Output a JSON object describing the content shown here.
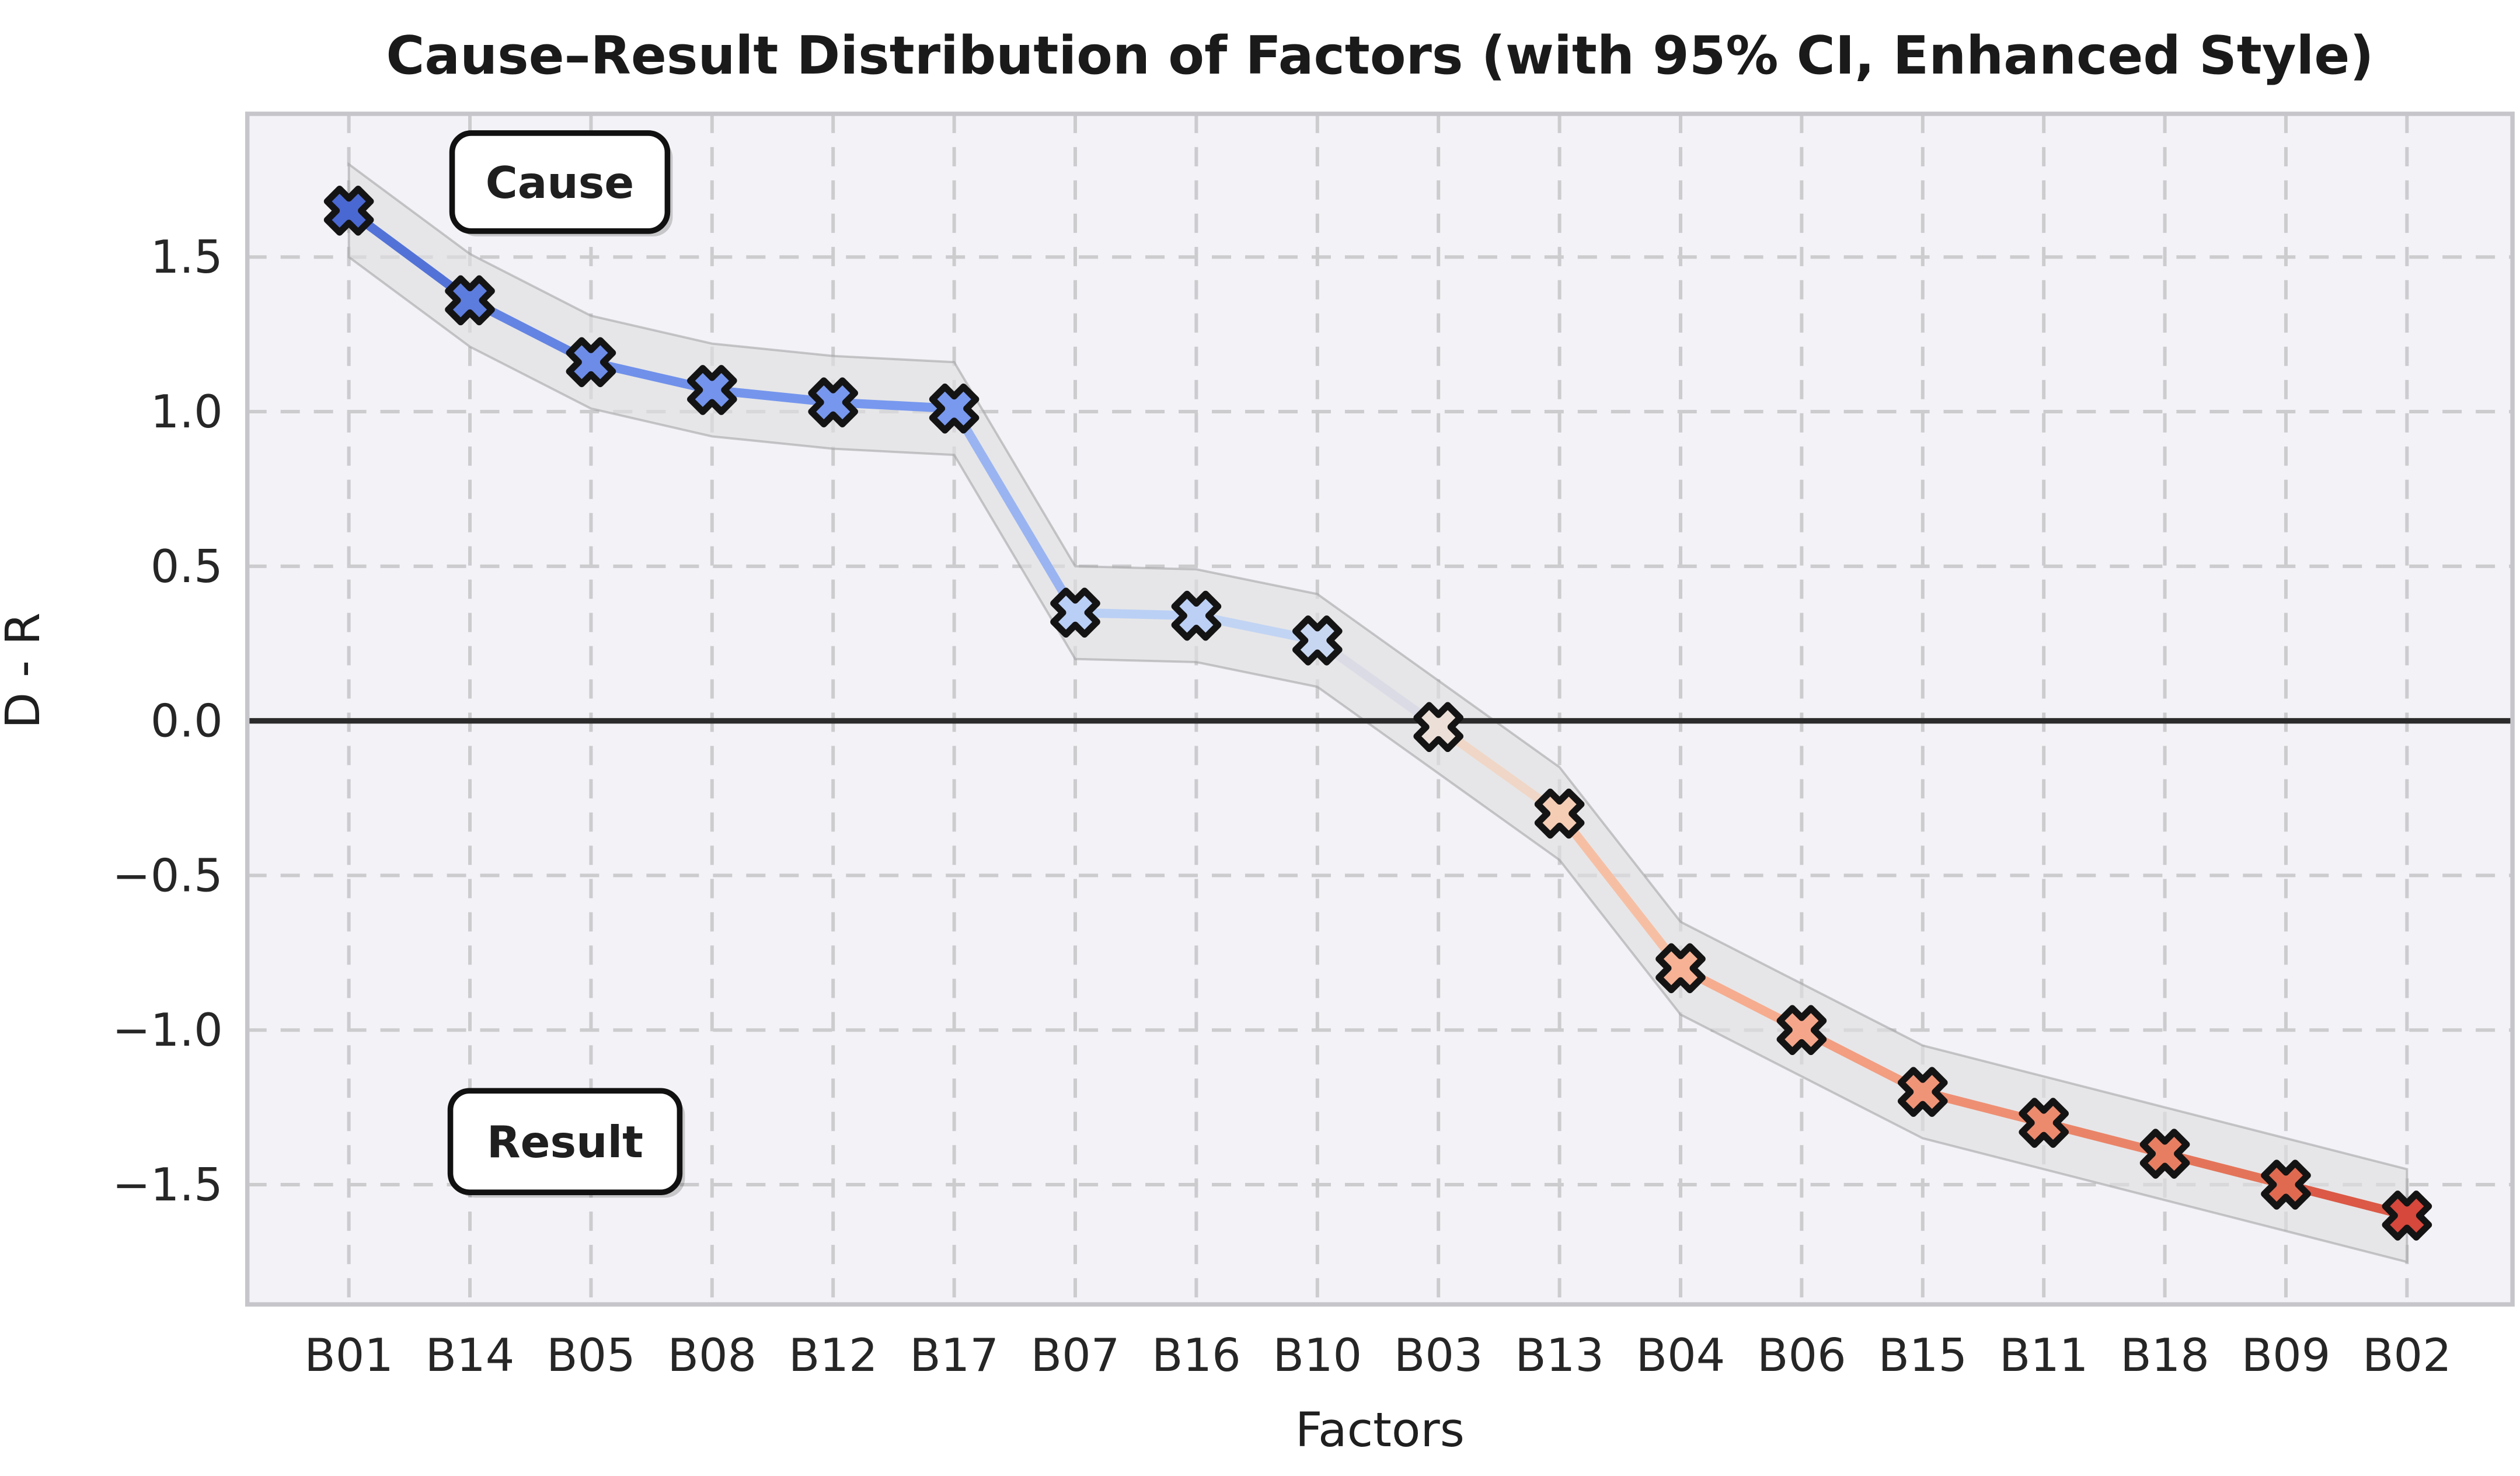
{
  "page": {
    "background": "#ffffff"
  },
  "chart_data": {
    "type": "line",
    "title": "Cause–Result Distribution of Factors (with 95% CI, Enhanced Style)",
    "xlabel": "Factors",
    "ylabel": "D - R",
    "categories": [
      "B01",
      "B14",
      "B05",
      "B08",
      "B12",
      "B17",
      "B07",
      "B16",
      "B10",
      "B03",
      "B13",
      "B04",
      "B06",
      "B15",
      "B11",
      "B18",
      "B09",
      "B02"
    ],
    "series": [
      {
        "name": "D - R",
        "values": [
          1.65,
          1.36,
          1.16,
          1.07,
          1.03,
          1.01,
          0.35,
          0.34,
          0.26,
          -0.02,
          -0.3,
          -0.8,
          -1.0,
          -1.2,
          -1.3,
          -1.4,
          -1.5,
          -1.6
        ]
      }
    ],
    "ci_halfwidth": 0.15,
    "point_colors": [
      "#4A68D1",
      "#5C7CDE",
      "#6C8CE8",
      "#7393EC",
      "#7797EE",
      "#7999EF",
      "#BACFF5",
      "#BCD0F5",
      "#C8D7F1",
      "#EBDFD7",
      "#F5CDB4",
      "#F7B194",
      "#F5A68A",
      "#F09478",
      "#EC8A6E",
      "#E77E62",
      "#E06A50",
      "#D6473C"
    ],
    "yticks": {
      "values": [
        1.5,
        1.0,
        0.5,
        0.0,
        -0.5,
        -1.0,
        -1.5
      ],
      "labels": [
        "1.5",
        "1.0",
        "0.5",
        "0.0",
        "−0.5",
        "−1.0",
        "−1.5"
      ]
    },
    "ylim": [
      -1.89,
      1.96
    ],
    "grid": "dashed-both",
    "legend": "none",
    "zero_line": true,
    "annotations": [
      {
        "text": "Cause"
      },
      {
        "text": "Result"
      }
    ],
    "colors": {
      "plot_background": "#F3F3F7",
      "grid": "#CCCCCF",
      "spine": "#C6C6CA",
      "zero_line": "#2B2B2B",
      "band_fill": "#DEDEE1",
      "band_edge": "#9E9EA3",
      "marker_edge": "#141414",
      "annotation_border": "#111111",
      "annotation_fill": "#FFFFFF",
      "title_color": "#1A1A1A"
    }
  }
}
